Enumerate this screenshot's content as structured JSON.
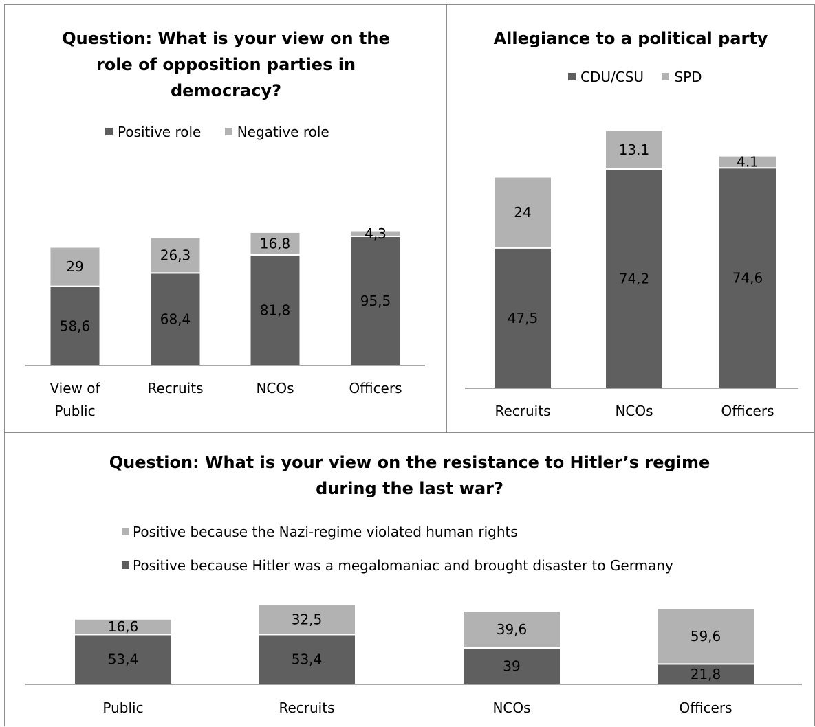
{
  "chart_data": [
    {
      "type": "bar",
      "stacked": true,
      "title": "Question: What is your view on the role of opposition parties in democracy?",
      "title_lines": [
        "Question: What is your view on the",
        "role of opposition parties in",
        "democracy?"
      ],
      "categories": [
        [
          "View of",
          "Public"
        ],
        [
          "Recruits"
        ],
        [
          "NCOs"
        ],
        [
          "Officers"
        ]
      ],
      "series": [
        {
          "name": "Positive role",
          "values": [
            58.6,
            68.4,
            81.8,
            95.5
          ],
          "labels": [
            "58,6",
            "68,4",
            "81,8",
            "95,5"
          ],
          "color": "#5f5f5f"
        },
        {
          "name": "Negative role",
          "values": [
            29,
            26.3,
            16.8,
            4.3
          ],
          "labels": [
            "29",
            "26,3",
            "16,8",
            "4,3"
          ],
          "color": "#b2b2b2"
        }
      ],
      "legend_position": "top",
      "ylim": [
        0,
        160
      ],
      "grid": false
    },
    {
      "type": "bar",
      "stacked": true,
      "title": "Allegiance to a political party",
      "title_lines": [
        "Allegiance to a political party"
      ],
      "categories": [
        [
          "Recruits"
        ],
        [
          "NCOs"
        ],
        [
          "Officers"
        ]
      ],
      "series": [
        {
          "name": "CDU/CSU",
          "values": [
            47.5,
            74.2,
            74.6
          ],
          "labels": [
            "47,5",
            "74,2",
            "74,6"
          ],
          "color": "#5f5f5f"
        },
        {
          "name": "SPD",
          "values": [
            24,
            13.1,
            4.1
          ],
          "labels": [
            "24",
            "13.1",
            "4.1"
          ],
          "color": "#b2b2b2"
        }
      ],
      "legend_position": "top",
      "ylim": [
        0,
        100
      ],
      "grid": false
    },
    {
      "type": "bar",
      "stacked": true,
      "title": "Question: What is your view on the resistance to Hitler’s regime during the last war?",
      "title_lines": [
        "Question: What is your view on the resistance to Hitler’s regime",
        "during the last war?"
      ],
      "categories": [
        [
          "Public"
        ],
        [
          "Recruits"
        ],
        [
          "NCOs"
        ],
        [
          "Officers"
        ]
      ],
      "series": [
        {
          "name": "Positive because Hitler was a megalomaniac and brought disaster to Germany",
          "values": [
            53.4,
            53.4,
            39,
            21.8
          ],
          "labels": [
            "53,4",
            "53,4",
            "39",
            "21,8"
          ],
          "color": "#5f5f5f"
        },
        {
          "name": "Positive because the Nazi-regime violated human rights",
          "values": [
            16.6,
            32.5,
            39.6,
            59.6
          ],
          "labels": [
            "16,6",
            "32,5",
            "39,6",
            "59,6"
          ],
          "color": "#b2b2b2"
        }
      ],
      "legend_position": "top",
      "legend_order": [
        1,
        0
      ],
      "ylim": [
        0,
        100
      ],
      "grid": false
    }
  ]
}
